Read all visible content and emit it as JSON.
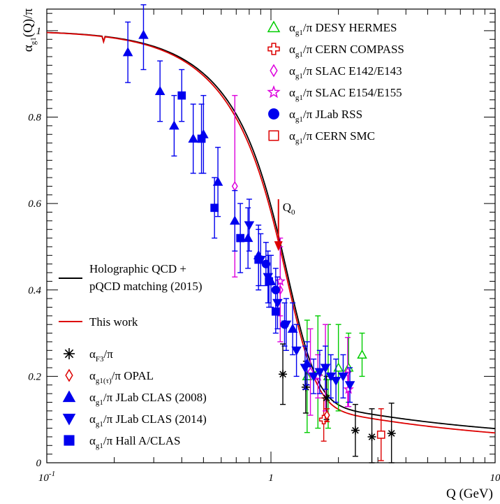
{
  "chart_data": {
    "type": "scatter",
    "xlabel": "Q (GeV)",
    "ylabel": {
      "main": "α",
      "sub": "g1",
      "rest": "(Q)/π"
    },
    "xscale": "log",
    "xlim": [
      0.1,
      10
    ],
    "ylim": [
      0,
      1.05
    ],
    "x_ticks": [
      {
        "value": 0.1,
        "base": "10",
        "exp": "-1"
      },
      {
        "value": 1,
        "base": "1",
        "exp": ""
      },
      {
        "value": 10,
        "base": "10",
        "exp": ""
      }
    ],
    "y_ticks": [
      {
        "value": 0,
        "label": "0"
      },
      {
        "value": 0.2,
        "label": "0.2"
      },
      {
        "value": 0.4,
        "label": "0.4"
      },
      {
        "value": 0.6,
        "label": "0.6"
      },
      {
        "value": 0.8,
        "label": "0.8"
      },
      {
        "value": 1,
        "label": "1"
      }
    ],
    "annotation": {
      "text": "Q",
      "sub": "0",
      "x": 1.08,
      "y_from": 0.61,
      "y_to": 0.49,
      "color": "#dd0000"
    },
    "curves": [
      {
        "legend": {
          "line1": "Holographic QCD +",
          "line2": "pQCD matching (2015)"
        },
        "color": "#000000",
        "q0": 0.78,
        "shift": 0.005
      },
      {
        "legend": {
          "line1": "This work",
          "line2": ""
        },
        "color": "#dd0000",
        "q0": 0.76,
        "shift": -0.005
      }
    ],
    "series": [
      {
        "key": "hermes",
        "legend": {
          "pre": "α",
          "sub": "g1",
          "post": "/π DESY HERMES"
        },
        "marker": "triangle-open",
        "color": "#00cc00",
        "points": [
          [
            1.45,
            0.2,
            0.13
          ],
          [
            1.62,
            0.21,
            0.13
          ],
          [
            1.8,
            0.2,
            0.12
          ],
          [
            2.0,
            0.22,
            0.1
          ],
          [
            2.22,
            0.22,
            0.08
          ],
          [
            2.55,
            0.25,
            0.05
          ]
        ]
      },
      {
        "key": "compass",
        "legend": {
          "pre": "α",
          "sub": "g1",
          "post": "/π CERN COMPASS"
        },
        "marker": "cross-open",
        "color": "#dd0000",
        "points": [
          [
            1.72,
            0.1,
            0.05
          ]
        ]
      },
      {
        "key": "e142",
        "legend": {
          "pre": "α",
          "sub": "g1",
          "post": "/π SLAC E142/E143"
        },
        "marker": "diamond-open",
        "color": "#dd00dd",
        "points": [
          [
            0.69,
            0.64,
            0.21
          ],
          [
            1.1,
            0.4,
            0.12
          ],
          [
            1.5,
            0.21,
            0.1
          ],
          [
            1.75,
            0.22,
            0.1
          ],
          [
            2.2,
            0.21,
            0.08
          ]
        ]
      },
      {
        "key": "e154",
        "legend": {
          "pre": "α",
          "sub": "g1",
          "post": "/π SLAC E154/E155"
        },
        "marker": "star-open",
        "color": "#dd00dd",
        "points": [
          [
            1.1,
            0.42,
            0.08
          ],
          [
            1.62,
            0.2,
            0.05
          ],
          [
            2.22,
            0.17,
            0.04
          ]
        ]
      },
      {
        "key": "rss",
        "legend": {
          "pre": "α",
          "sub": "g1",
          "post": "/π JLab RSS"
        },
        "marker": "circle",
        "color": "#0000ee",
        "points": [
          [
            0.95,
            0.46,
            0.05
          ],
          [
            1.05,
            0.4,
            0.05
          ],
          [
            1.15,
            0.32,
            0.05
          ]
        ]
      },
      {
        "key": "smc",
        "legend": {
          "pre": "α",
          "sub": "g1",
          "post": "/π CERN SMC"
        },
        "marker": "square-open",
        "color": "#dd0000",
        "points": [
          [
            3.1,
            0.065,
            0.06
          ]
        ]
      },
      {
        "key": "f3",
        "legend": {
          "pre": "α",
          "sub": "F3",
          "post": "/π"
        },
        "marker": "asterisk",
        "color": "#000000",
        "points": [
          [
            1.13,
            0.205,
            0.07
          ],
          [
            1.43,
            0.175,
            0.06
          ],
          [
            1.77,
            0.15,
            0.05
          ],
          [
            2.38,
            0.075,
            0.06
          ],
          [
            2.82,
            0.06,
            0.065
          ],
          [
            3.45,
            0.068,
            0.07
          ]
        ]
      },
      {
        "key": "opal",
        "legend": {
          "pre": "α",
          "sub": "g1(τ)",
          "post": "/π OPAL"
        },
        "marker": "diamond-open",
        "color": "#dd0000",
        "points": [
          [
            1.777,
            0.11,
            0.015
          ]
        ]
      },
      {
        "key": "clas2008",
        "legend": {
          "pre": "α",
          "sub": "g1",
          "post": "/π JLab CLAS (2008)"
        },
        "marker": "triangle-up",
        "color": "#0000ee",
        "points": [
          [
            0.23,
            0.95,
            0.07
          ],
          [
            0.27,
            0.99,
            0.08
          ],
          [
            0.32,
            0.86,
            0.07
          ],
          [
            0.37,
            0.78,
            0.07
          ],
          [
            0.45,
            0.75,
            0.08
          ],
          [
            0.5,
            0.76,
            0.09
          ],
          [
            0.58,
            0.65,
            0.08
          ],
          [
            0.69,
            0.56,
            0.07
          ],
          [
            0.79,
            0.52,
            0.07
          ],
          [
            0.88,
            0.48,
            0.07
          ],
          [
            1.0,
            0.42,
            0.06
          ],
          [
            1.25,
            0.31,
            0.06
          ],
          [
            1.45,
            0.23,
            0.05
          ]
        ]
      },
      {
        "key": "clas2014",
        "legend": {
          "pre": "α",
          "sub": "g1",
          "post": "/π JLab CLAS (2014)"
        },
        "marker": "triangle-down",
        "color": "#0000ee",
        "points": [
          [
            0.8,
            0.55,
            0.06
          ],
          [
            0.9,
            0.47,
            0.06
          ],
          [
            0.97,
            0.43,
            0.06
          ],
          [
            1.07,
            0.37,
            0.06
          ],
          [
            1.17,
            0.32,
            0.06
          ],
          [
            1.3,
            0.26,
            0.06
          ],
          [
            1.42,
            0.22,
            0.05
          ],
          [
            1.55,
            0.2,
            0.04
          ],
          [
            1.65,
            0.21,
            0.05
          ],
          [
            1.75,
            0.22,
            0.05
          ],
          [
            1.85,
            0.2,
            0.05
          ],
          [
            1.95,
            0.19,
            0.05
          ],
          [
            2.1,
            0.2,
            0.05
          ],
          [
            2.25,
            0.18,
            0.04
          ]
        ]
      },
      {
        "key": "halla",
        "legend": {
          "pre": "α",
          "sub": "g1",
          "post": "/π Hall A/CLAS"
        },
        "marker": "square",
        "color": "#0000ee",
        "points": [
          [
            0.4,
            0.85,
            0.06
          ],
          [
            0.49,
            0.75,
            0.08
          ],
          [
            0.56,
            0.59,
            0.07
          ],
          [
            0.73,
            0.52,
            0.08
          ],
          [
            0.88,
            0.47,
            0.07
          ],
          [
            0.98,
            0.42,
            0.06
          ],
          [
            1.05,
            0.35,
            0.05
          ]
        ]
      }
    ]
  }
}
